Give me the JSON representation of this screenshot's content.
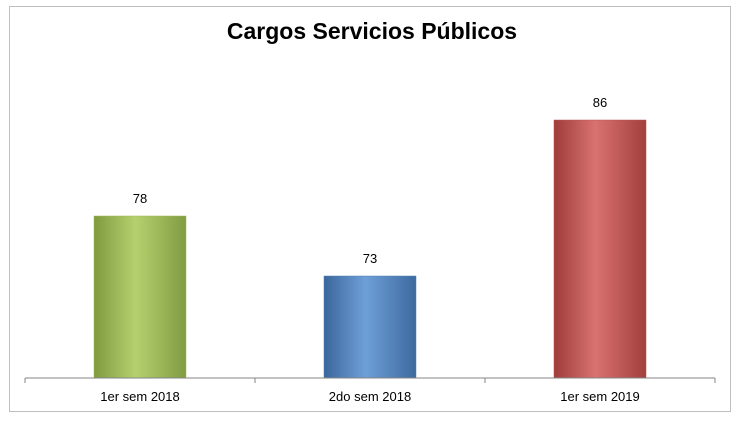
{
  "chart_data": {
    "type": "bar",
    "title": "Cargos Servicios Públicos",
    "categories": [
      "1er sem 2018",
      "2do sem 2018",
      "1er sem 2019"
    ],
    "values": [
      78,
      73,
      86
    ],
    "colors": [
      "#9bbb59",
      "#4f81bd",
      "#c0504d"
    ],
    "data_labels": [
      "78",
      "73",
      "86"
    ],
    "xlabel": "",
    "ylabel": "",
    "y_axis_visible": false,
    "grid": false,
    "legend": "none"
  }
}
